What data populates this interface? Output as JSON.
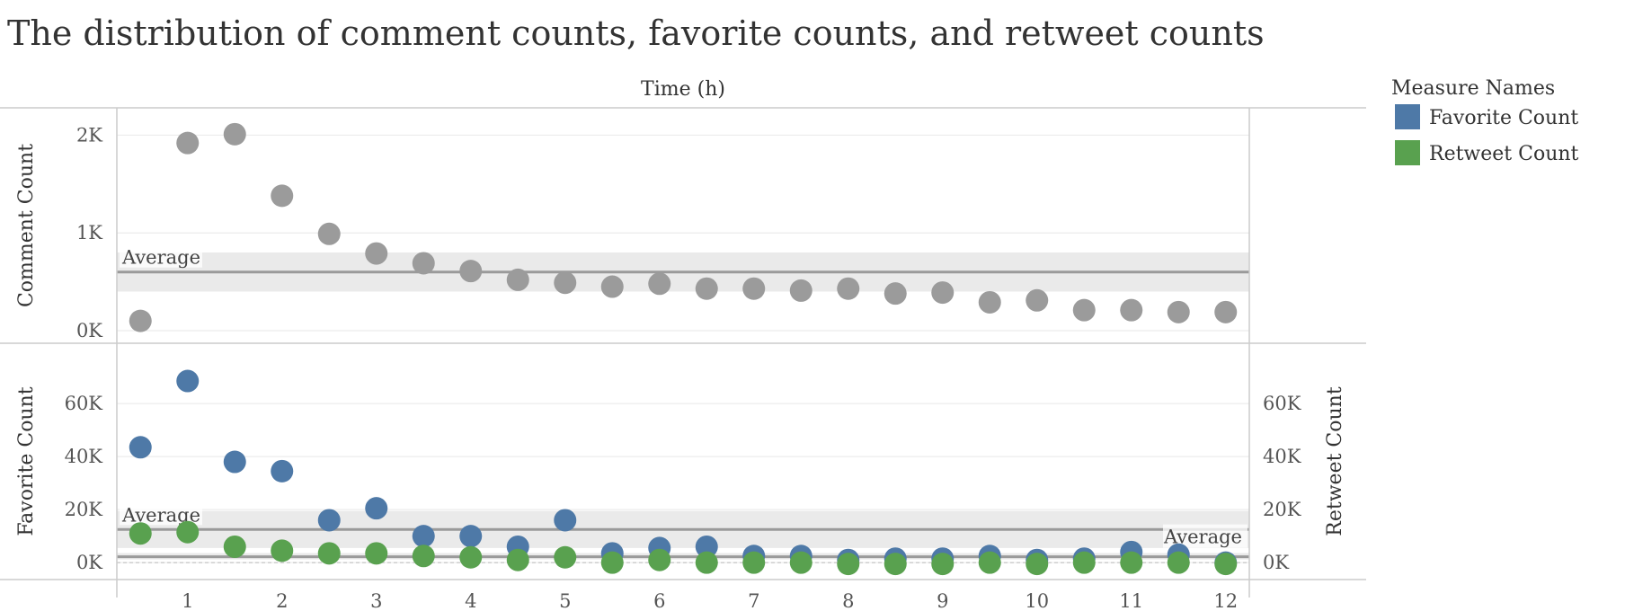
{
  "chart_data": {
    "type": "scatter",
    "title": "The distribution of comment counts, favorite counts, and retweet counts",
    "x_axis_title": "Time (h)",
    "x": [
      0.5,
      1,
      1.5,
      2,
      2.5,
      3,
      3.5,
      4,
      4.5,
      5,
      5.5,
      6,
      6.5,
      7,
      7.5,
      8,
      8.5,
      9,
      9.5,
      10,
      10.5,
      11,
      11.5,
      12
    ],
    "x_ticks": [
      "1",
      "2",
      "3",
      "4",
      "5",
      "6",
      "7",
      "8",
      "9",
      "10",
      "11",
      "12"
    ],
    "legend": {
      "title": "Measure Names",
      "items": [
        {
          "label": "Favorite Count",
          "color": "#4e79a7"
        },
        {
          "label": "Retweet Count",
          "color": "#59a14f"
        }
      ]
    },
    "panels": [
      {
        "ylabel": "Comment Count",
        "ylim": [
          0,
          2050
        ],
        "y_ticks": [
          {
            "value": 0,
            "label": "0K"
          },
          {
            "value": 1000,
            "label": "1K"
          },
          {
            "value": 2000,
            "label": "2K"
          }
        ],
        "average": {
          "label": "Average",
          "value": 600,
          "band": [
            400,
            800
          ]
        },
        "series": [
          {
            "name": "Comment Count",
            "color": "#9b9b9b",
            "values": [
              100,
              1920,
              2010,
              1380,
              990,
              790,
              690,
              610,
              520,
              490,
              450,
              480,
              430,
              430,
              410,
              430,
              380,
              390,
              290,
              310,
              210,
              210,
              190,
              190
            ]
          }
        ]
      },
      {
        "ylabel": "Favorite Count",
        "ylabel_right": "Retweet Count",
        "ylim": [
          -3000,
          78000
        ],
        "y_ticks": [
          {
            "value": 0,
            "label": "0K"
          },
          {
            "value": 20000,
            "label": "20K"
          },
          {
            "value": 40000,
            "label": "40K"
          },
          {
            "value": 60000,
            "label": "60K"
          }
        ],
        "average_left": {
          "label": "Average",
          "value": 12500,
          "band": [
            5500,
            19500
          ]
        },
        "average_right": {
          "label": "Average",
          "value": 2200,
          "band": [
            1200,
            3600
          ]
        },
        "series": [
          {
            "name": "Favorite Count",
            "color": "#4e79a7",
            "values": [
              43500,
              68500,
              38000,
              34500,
              16000,
              20500,
              10000,
              10000,
              6000,
              16000,
              3500,
              5500,
              6000,
              2500,
              2500,
              1000,
              1500,
              1500,
              2500,
              1000,
              1500,
              4000,
              3000,
              0
            ]
          },
          {
            "name": "Retweet Count",
            "color": "#59a14f",
            "values": [
              11000,
              11500,
              6000,
              4500,
              3500,
              3500,
              2500,
              2000,
              1000,
              2000,
              0,
              1000,
              0,
              0,
              0,
              -500,
              -500,
              -500,
              0,
              -500,
              0,
              0,
              0,
              -500
            ]
          }
        ]
      }
    ]
  }
}
